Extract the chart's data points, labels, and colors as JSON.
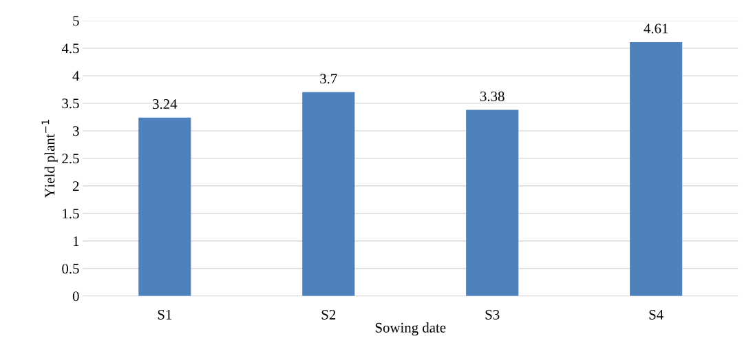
{
  "chart_data": {
    "type": "bar",
    "xlabel": "Sowing date",
    "ylabel": "Yield plant$^{−1}$",
    "categories": [
      "S1",
      "S2",
      "S3",
      "S4"
    ],
    "values": [
      3.24,
      3.7,
      3.38,
      4.61
    ],
    "color": "#4f81bd",
    "ylim": [
      0,
      5
    ],
    "yticks": [
      0,
      0.5,
      1,
      1.5,
      2,
      2.5,
      3,
      3.5,
      4,
      4.5,
      5
    ],
    "grid": "y",
    "data_labels": true
  }
}
